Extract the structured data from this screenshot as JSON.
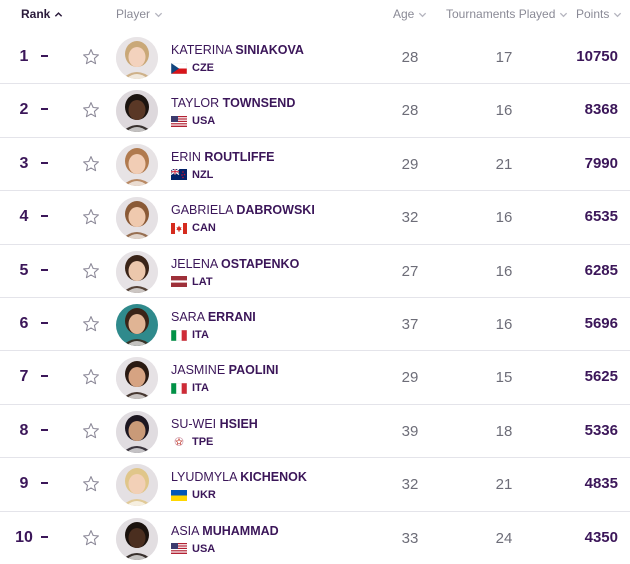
{
  "header": {
    "rank": "Rank",
    "player": "Player",
    "age": "Age",
    "tournaments": "Tournaments Played",
    "points": "Points"
  },
  "colors": {
    "primary_text": "#3b1659",
    "muted_text": "#8a8a96",
    "divider": "#e4e4ea"
  },
  "players": [
    {
      "rank": "1",
      "movement": "-",
      "first": "KATERINA",
      "last": "SINIAKOVA",
      "country": "CZE",
      "flag": "cze",
      "age": "28",
      "tournaments": "17",
      "points": "10750"
    },
    {
      "rank": "2",
      "movement": "-",
      "first": "TAYLOR",
      "last": "TOWNSEND",
      "country": "USA",
      "flag": "usa",
      "age": "28",
      "tournaments": "16",
      "points": "8368"
    },
    {
      "rank": "3",
      "movement": "-",
      "first": "ERIN",
      "last": "ROUTLIFFE",
      "country": "NZL",
      "flag": "nzl",
      "age": "29",
      "tournaments": "21",
      "points": "7990"
    },
    {
      "rank": "4",
      "movement": "-",
      "first": "GABRIELA",
      "last": "DABROWSKI",
      "country": "CAN",
      "flag": "can",
      "age": "32",
      "tournaments": "16",
      "points": "6535"
    },
    {
      "rank": "5",
      "movement": "-",
      "first": "JELENA",
      "last": "OSTAPENKO",
      "country": "LAT",
      "flag": "lat",
      "age": "27",
      "tournaments": "16",
      "points": "6285"
    },
    {
      "rank": "6",
      "movement": "-",
      "first": "SARA",
      "last": "ERRANI",
      "country": "ITA",
      "flag": "ita",
      "age": "37",
      "tournaments": "16",
      "points": "5696"
    },
    {
      "rank": "7",
      "movement": "-",
      "first": "JASMINE",
      "last": "PAOLINI",
      "country": "ITA",
      "flag": "ita",
      "age": "29",
      "tournaments": "15",
      "points": "5625"
    },
    {
      "rank": "8",
      "movement": "-",
      "first": "SU-WEI",
      "last": "HSIEH",
      "country": "TPE",
      "flag": "tpe",
      "age": "39",
      "tournaments": "18",
      "points": "5336"
    },
    {
      "rank": "9",
      "movement": "-",
      "first": "LYUDMYLA",
      "last": "KICHENOK",
      "country": "UKR",
      "flag": "ukr",
      "age": "32",
      "tournaments": "21",
      "points": "4835"
    },
    {
      "rank": "10",
      "movement": "-",
      "first": "ASIA",
      "last": "MUHAMMAD",
      "country": "USA",
      "flag": "usa",
      "age": "33",
      "tournaments": "24",
      "points": "4350"
    }
  ]
}
